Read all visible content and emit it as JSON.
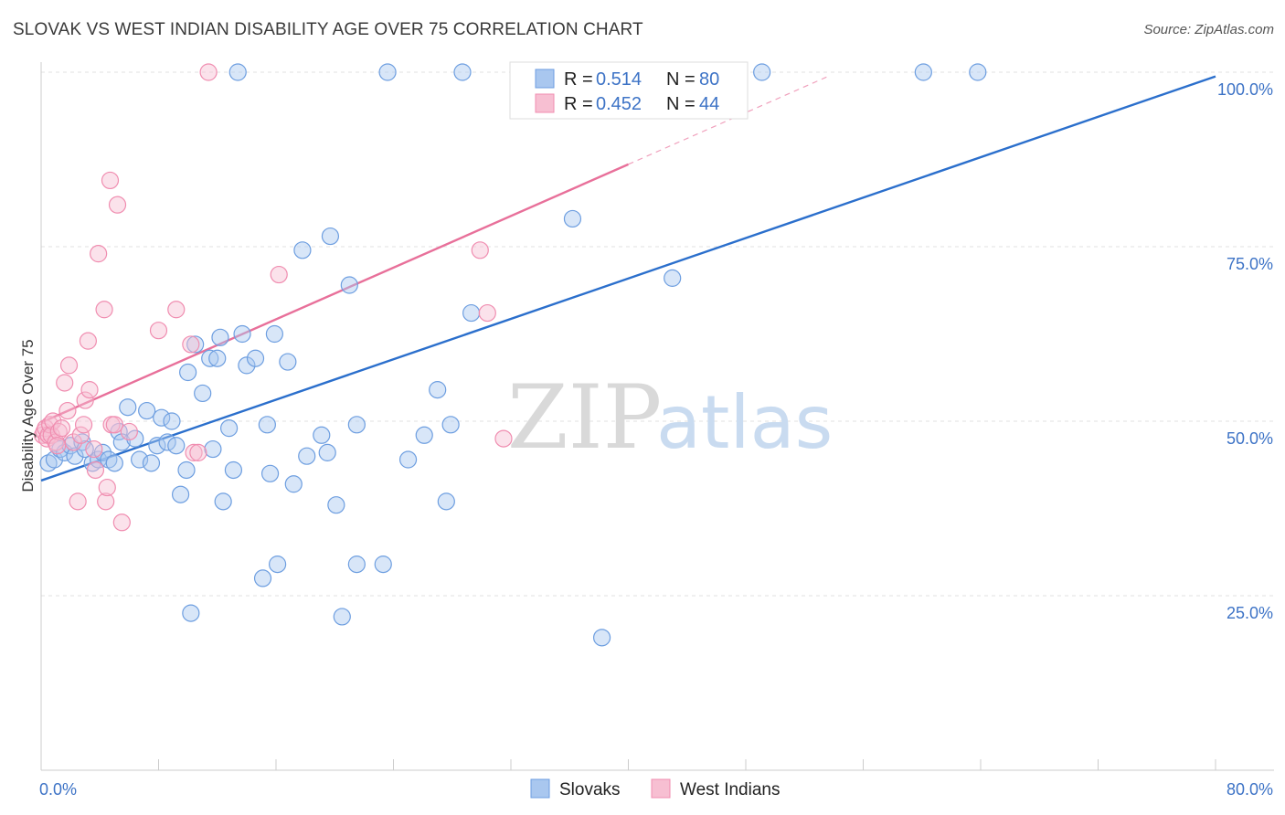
{
  "header": {
    "title": "SLOVAK VS WEST INDIAN DISABILITY AGE OVER 75 CORRELATION CHART",
    "source": "Source: ZipAtlas.com"
  },
  "watermark": {
    "zip": "ZIP",
    "atlas": "atlas"
  },
  "legend": {
    "rows": [
      {
        "r_label": "R =",
        "r_value": "0.514",
        "n_label": "N =",
        "n_value": "80",
        "color": "#6d9ee0"
      },
      {
        "r_label": "R =",
        "r_value": "0.452",
        "n_label": "N =",
        "n_value": "44",
        "color": "#f08db0"
      }
    ]
  },
  "bottom_legend": {
    "items": [
      "Slovaks",
      "West Indians"
    ]
  },
  "chart_data": {
    "type": "scatter",
    "title": "SLOVAK VS WEST INDIAN DISABILITY AGE OVER 75 CORRELATION CHART",
    "xlabel": "",
    "ylabel": "Disability Age Over 75",
    "xlim": [
      0,
      80
    ],
    "ylim": [
      0,
      100
    ],
    "x_tick_labels": [
      "0.0%",
      "80.0%"
    ],
    "y_ticks": [
      25,
      50,
      75,
      100
    ],
    "y_tick_labels": [
      "25.0%",
      "50.0%",
      "75.0%",
      "100.0%"
    ],
    "grid": true,
    "legend_position": "top-center",
    "series": [
      {
        "name": "Slovaks",
        "color": "#6d9ee0",
        "fill": "#a9c7ef",
        "R": 0.514,
        "N": 80,
        "trend": {
          "x0": 0,
          "y0": 41.5,
          "x1": 80,
          "y1": 99.4
        },
        "points": [
          [
            0.5,
            44
          ],
          [
            0.9,
            44.5
          ],
          [
            1.3,
            46
          ],
          [
            1.6,
            45.5
          ],
          [
            2.0,
            46.5
          ],
          [
            2.3,
            45
          ],
          [
            2.8,
            47
          ],
          [
            3.0,
            46
          ],
          [
            3.5,
            44
          ],
          [
            3.9,
            44.5
          ],
          [
            4.2,
            45.5
          ],
          [
            4.6,
            44.5
          ],
          [
            5.0,
            44
          ],
          [
            5.3,
            48.5
          ],
          [
            5.5,
            47
          ],
          [
            5.9,
            52
          ],
          [
            6.4,
            47.5
          ],
          [
            6.7,
            44.5
          ],
          [
            7.2,
            51.5
          ],
          [
            7.5,
            44
          ],
          [
            7.9,
            46.5
          ],
          [
            8.2,
            50.5
          ],
          [
            8.6,
            47
          ],
          [
            8.9,
            50
          ],
          [
            9.2,
            46.5
          ],
          [
            9.5,
            39.5
          ],
          [
            9.9,
            43
          ],
          [
            10.0,
            57
          ],
          [
            10.2,
            22.5
          ],
          [
            10.5,
            61
          ],
          [
            11.0,
            54
          ],
          [
            11.5,
            59
          ],
          [
            11.7,
            46
          ],
          [
            12.0,
            59
          ],
          [
            12.2,
            62
          ],
          [
            12.4,
            38.5
          ],
          [
            12.8,
            49
          ],
          [
            13.1,
            43
          ],
          [
            13.4,
            100
          ],
          [
            13.7,
            62.5
          ],
          [
            14.0,
            58
          ],
          [
            14.6,
            59
          ],
          [
            15.1,
            27.5
          ],
          [
            15.4,
            49.5
          ],
          [
            15.6,
            42.5
          ],
          [
            15.9,
            62.5
          ],
          [
            16.1,
            29.5
          ],
          [
            16.8,
            58.5
          ],
          [
            17.2,
            41
          ],
          [
            17.8,
            74.5
          ],
          [
            18.1,
            45
          ],
          [
            19.1,
            48
          ],
          [
            19.5,
            45.5
          ],
          [
            19.7,
            76.5
          ],
          [
            20.1,
            38
          ],
          [
            20.5,
            22
          ],
          [
            21.0,
            69.5
          ],
          [
            21.5,
            29.5
          ],
          [
            21.5,
            49.5
          ],
          [
            23.3,
            29.5
          ],
          [
            23.6,
            100
          ],
          [
            25.0,
            44.5
          ],
          [
            26.1,
            48
          ],
          [
            27.0,
            54.5
          ],
          [
            27.6,
            38.5
          ],
          [
            27.9,
            49.5
          ],
          [
            28.7,
            100
          ],
          [
            29.3,
            65.5
          ],
          [
            36.2,
            79
          ],
          [
            38.2,
            19
          ],
          [
            43.0,
            70.5
          ],
          [
            49.1,
            100
          ],
          [
            60.1,
            100
          ],
          [
            63.8,
            100
          ]
        ]
      },
      {
        "name": "West Indians",
        "color": "#f08db0",
        "fill": "#f7bfd2",
        "R": 0.452,
        "N": 44,
        "trend": {
          "x0": 0,
          "y0": 49.8,
          "x1": 40,
          "y1": 86.8,
          "dash_to_x": 53.5,
          "dash_to_y": 99.3
        },
        "points": [
          [
            0.1,
            48
          ],
          [
            0.2,
            48.5
          ],
          [
            0.3,
            49
          ],
          [
            0.4,
            47.5
          ],
          [
            0.5,
            48
          ],
          [
            0.6,
            49.5
          ],
          [
            0.7,
            48
          ],
          [
            0.8,
            50
          ],
          [
            1.0,
            47
          ],
          [
            1.2,
            48.5
          ],
          [
            1.4,
            49
          ],
          [
            1.6,
            55.5
          ],
          [
            1.8,
            51.5
          ],
          [
            1.9,
            58
          ],
          [
            2.2,
            47
          ],
          [
            2.5,
            38.5
          ],
          [
            2.7,
            48
          ],
          [
            2.9,
            49.5
          ],
          [
            3.0,
            53
          ],
          [
            3.2,
            61.5
          ],
          [
            3.3,
            54.5
          ],
          [
            3.6,
            46
          ],
          [
            3.7,
            43
          ],
          [
            3.9,
            74
          ],
          [
            4.3,
            66
          ],
          [
            4.4,
            38.5
          ],
          [
            4.5,
            40.5
          ],
          [
            4.7,
            84.5
          ],
          [
            4.8,
            49.5
          ],
          [
            5.0,
            49.5
          ],
          [
            5.2,
            81
          ],
          [
            5.5,
            35.5
          ],
          [
            6.0,
            48.5
          ],
          [
            8.0,
            63
          ],
          [
            9.2,
            66
          ],
          [
            10.2,
            61
          ],
          [
            10.4,
            45.5
          ],
          [
            10.7,
            45.5
          ],
          [
            11.4,
            100
          ],
          [
            16.2,
            71
          ],
          [
            29.9,
            74.5
          ],
          [
            30.4,
            65.5
          ],
          [
            31.5,
            47.5
          ],
          [
            1.1,
            46.5
          ]
        ]
      }
    ]
  }
}
